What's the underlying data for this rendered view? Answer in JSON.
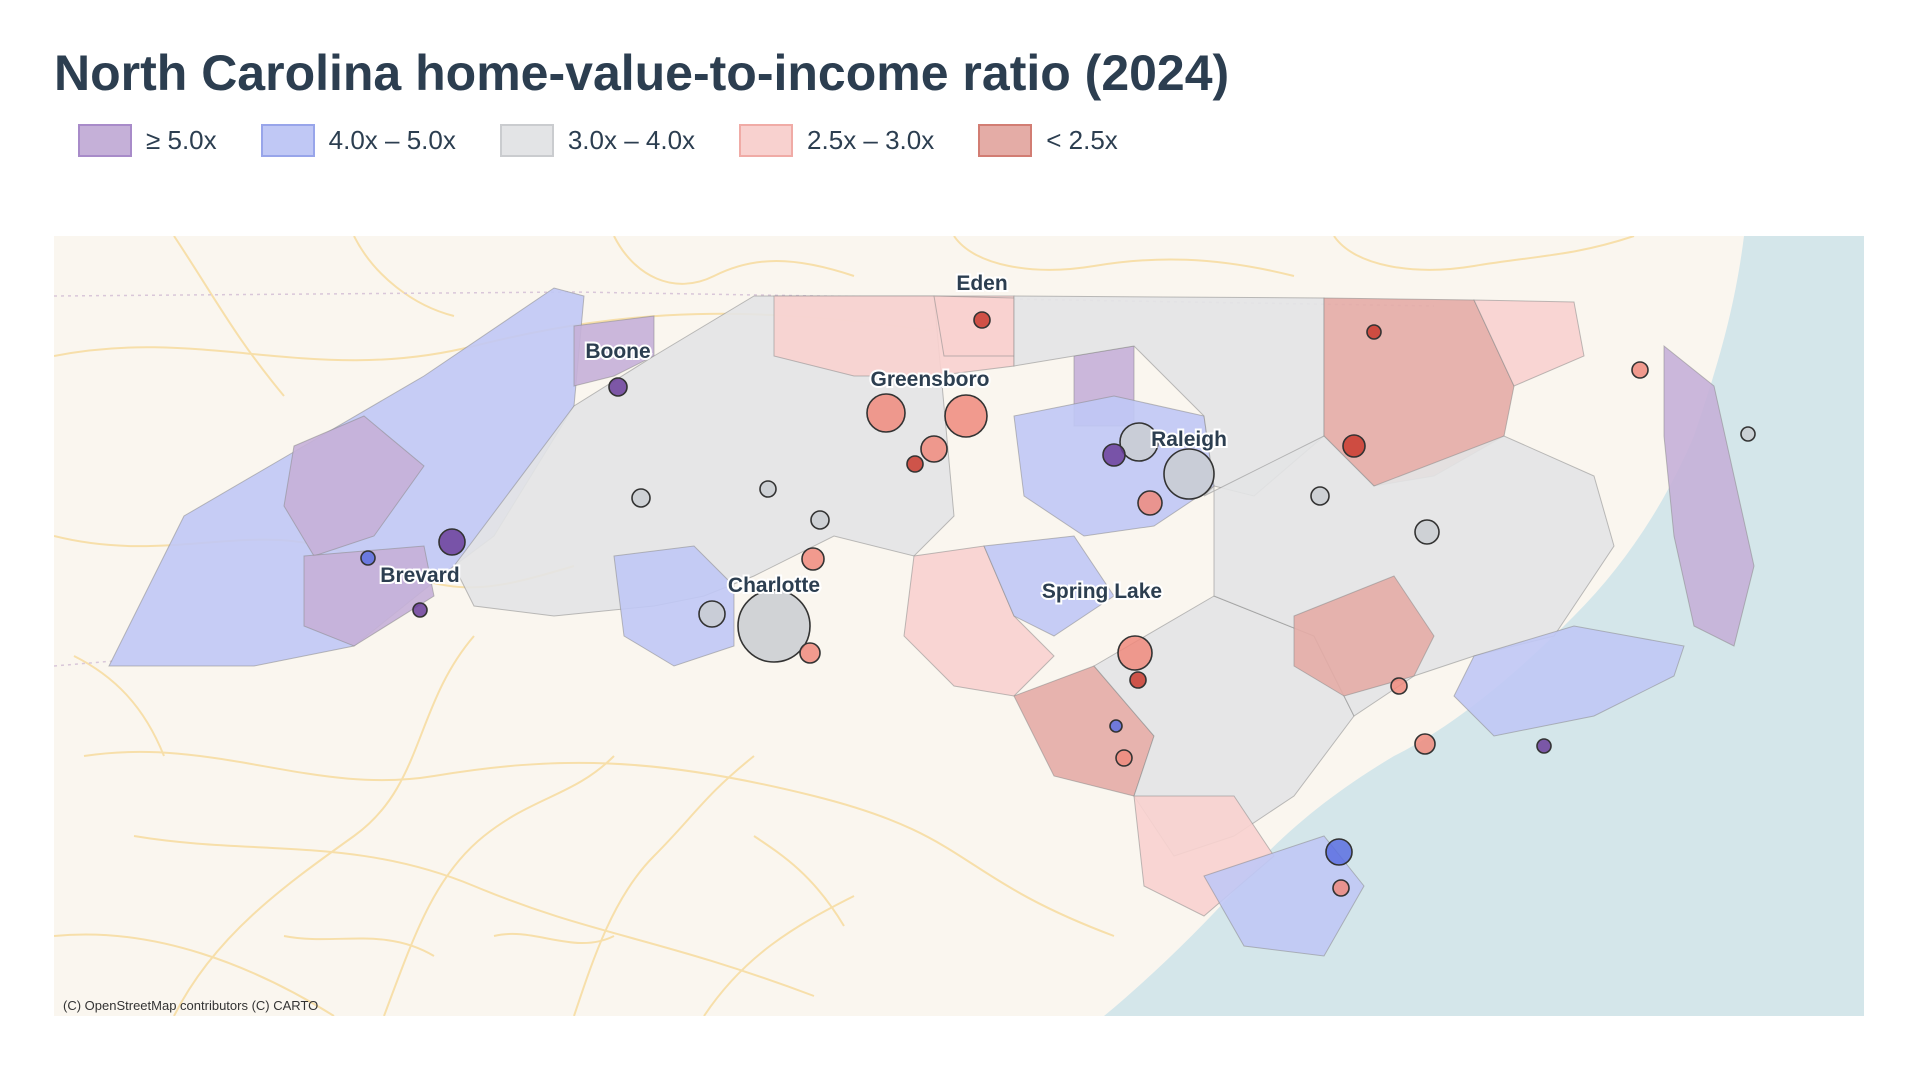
{
  "title": "North Carolina home-value-to-income ratio (2024)",
  "legend": [
    {
      "label": "≥ 5.0x",
      "fill": "#c5b0d8",
      "border": "#a88bc9"
    },
    {
      "label": "4.0x – 5.0x",
      "fill": "#c0c8f5",
      "border": "#98a5ea"
    },
    {
      "label": "3.0x – 4.0x",
      "fill": "#e3e4e6",
      "border": "#cacccf"
    },
    {
      "label": "2.5x – 3.0x",
      "fill": "#f8d1cf",
      "border": "#f0aba6"
    },
    {
      "label": "< 2.5x",
      "fill": "#e4aca6",
      "border": "#d27d73"
    }
  ],
  "cities": [
    "Eden",
    "Boone",
    "Greensboro",
    "Raleigh",
    "Brevard",
    "Charlotte",
    "Spring Lake"
  ],
  "attribution": "(C) OpenStreetMap contributors (C) CARTO",
  "colors": {
    "land": "#faf6ef",
    "water": "#d4e6ea",
    "roads": "#f7dfaa",
    "text": "#2c3e50",
    "dot_high": "#6a3d9a",
    "dot_upper": "#5b6fe0",
    "dot_mid": "#c9ccd1",
    "dot_low": "#ef8a7d",
    "dot_lowest": "#c93a2e"
  }
}
